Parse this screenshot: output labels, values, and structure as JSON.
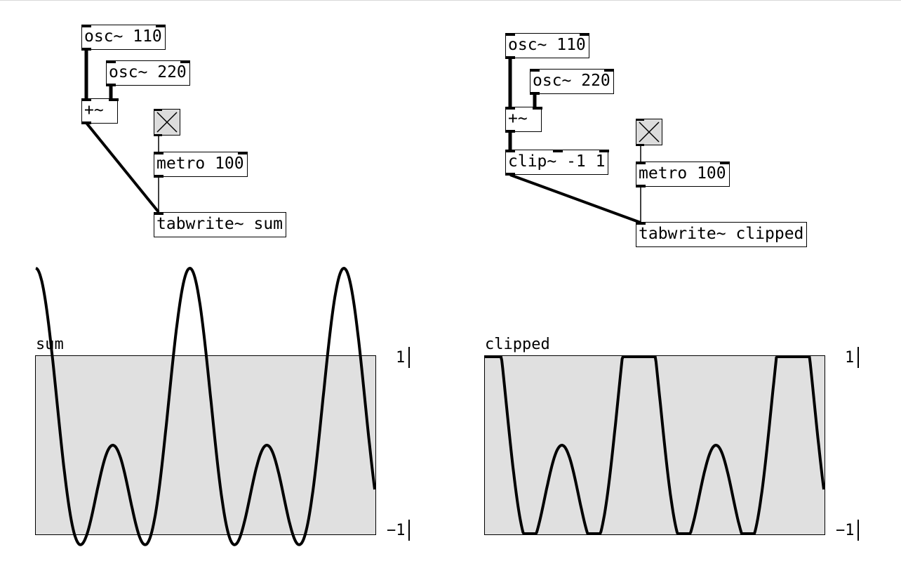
{
  "patch_left": {
    "osc1": "osc~ 110",
    "osc2": "osc~ 220",
    "add": "+~",
    "metro": "metro 100",
    "tabwrite": "tabwrite~ sum",
    "toggle": "toggle"
  },
  "patch_right": {
    "osc1": "osc~ 110",
    "osc2": "osc~ 220",
    "add": "+~",
    "clip": "clip~ -1 1",
    "metro": "metro 100",
    "tabwrite": "tabwrite~ clipped",
    "toggle": "toggle"
  },
  "chart_data": [
    {
      "type": "line",
      "title": "sum",
      "series": [
        {
          "name": "sum",
          "formula": "cos(2*pi*110*t) + cos(2*pi*220*t)"
        }
      ],
      "ylim": [
        -1,
        1
      ],
      "ytick_labels": [
        "1",
        "−1"
      ],
      "x_range_periods": 2.2,
      "clip": false
    },
    {
      "type": "line",
      "title": "clipped",
      "series": [
        {
          "name": "clipped",
          "formula": "clip(cos(2*pi*110*t) + cos(2*pi*220*t), -1, 1)"
        }
      ],
      "ylim": [
        -1,
        1
      ],
      "ytick_labels": [
        "1",
        "−1"
      ],
      "x_range_periods": 2.2,
      "clip": true
    }
  ]
}
